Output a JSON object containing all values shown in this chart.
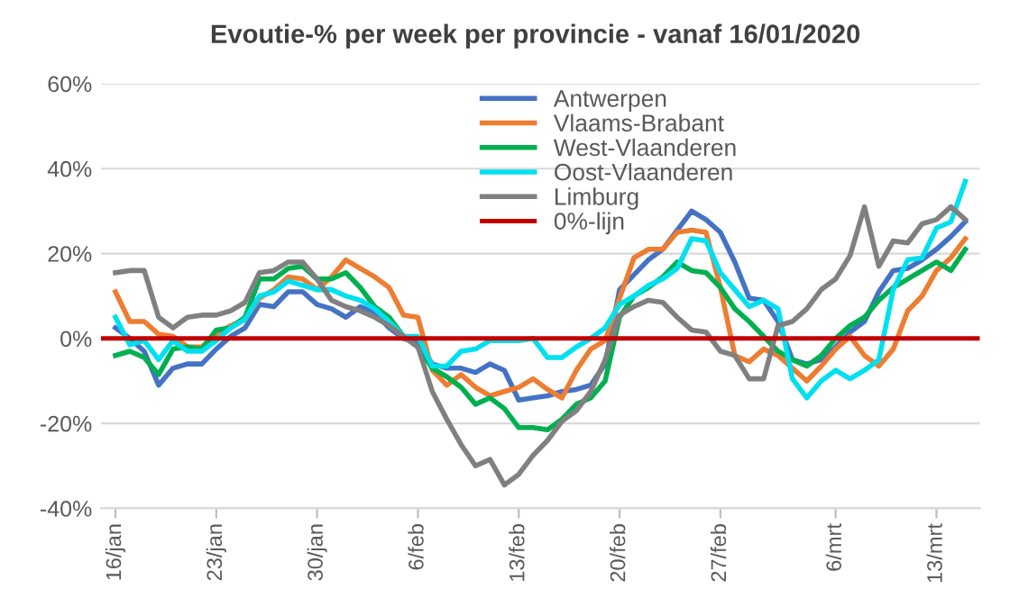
{
  "chart_data": {
    "type": "line",
    "title": "Evoutie-% per week per provincie - vanaf 16/01/2020",
    "x": [
      "2020-01-16",
      "2020-01-17",
      "2020-01-18",
      "2020-01-19",
      "2020-01-20",
      "2020-01-21",
      "2020-01-22",
      "2020-01-23",
      "2020-01-24",
      "2020-01-25",
      "2020-01-26",
      "2020-01-27",
      "2020-01-28",
      "2020-01-29",
      "2020-01-30",
      "2020-01-31",
      "2020-02-01",
      "2020-02-02",
      "2020-02-03",
      "2020-02-04",
      "2020-02-05",
      "2020-02-06",
      "2020-02-07",
      "2020-02-08",
      "2020-02-09",
      "2020-02-10",
      "2020-02-11",
      "2020-02-12",
      "2020-02-13",
      "2020-02-14",
      "2020-02-15",
      "2020-02-16",
      "2020-02-17",
      "2020-02-18",
      "2020-02-19",
      "2020-02-20",
      "2020-02-21",
      "2020-02-22",
      "2020-02-23",
      "2020-02-24",
      "2020-02-25",
      "2020-02-26",
      "2020-02-27",
      "2020-02-28",
      "2020-02-29",
      "2020-03-01",
      "2020-03-02",
      "2020-03-03",
      "2020-03-04",
      "2020-03-05",
      "2020-03-06",
      "2020-03-07",
      "2020-03-08",
      "2020-03-09",
      "2020-03-10",
      "2020-03-11",
      "2020-03-12",
      "2020-03-13",
      "2020-03-14",
      "2020-03-15"
    ],
    "series": [
      {
        "name": "Antwerpen",
        "color": "#4472c4",
        "values": [
          2.5,
          0,
          -3,
          -11,
          -7,
          -6,
          -6,
          -2.5,
          0.5,
          2.5,
          8,
          7.5,
          11,
          11,
          8,
          7,
          5,
          7.5,
          6,
          2.5,
          0,
          -1,
          -6,
          -7,
          -7,
          -8,
          -6,
          -7.5,
          -14.5,
          -14,
          -13.5,
          -12.5,
          -12,
          -11,
          -6,
          11.5,
          15,
          18.5,
          21,
          25.5,
          30,
          28,
          25,
          18,
          9.5,
          9,
          4,
          -5,
          -6,
          -5,
          -2,
          1.5,
          4,
          11,
          16,
          16.5,
          18.5,
          21,
          24,
          27.5
        ]
      },
      {
        "name": "Vlaams-Brabant",
        "color": "#ed7d31",
        "values": [
          11,
          4,
          4,
          1,
          0.5,
          -2,
          -2,
          1,
          3,
          4.5,
          9.5,
          11.5,
          14.5,
          14,
          11.5,
          14.5,
          18.5,
          16.5,
          14.5,
          12,
          5.5,
          5,
          -7.5,
          -11,
          -8.5,
          -11.5,
          -13.5,
          -12.5,
          -11.5,
          -9.5,
          -12,
          -14,
          -7.5,
          -2.5,
          -0.5,
          9.5,
          19,
          21,
          21,
          25,
          25.5,
          25,
          12,
          -4,
          -5.5,
          -2.5,
          -4,
          -7,
          -10,
          -6.5,
          -2.5,
          0.5,
          -4,
          -6.5,
          -2.5,
          6.5,
          10,
          16,
          19,
          23.5
        ]
      },
      {
        "name": "West-Vlaanderen",
        "color": "#00b050",
        "values": [
          -4,
          -3,
          -4.5,
          -8.5,
          -2.5,
          -2,
          -2.5,
          2,
          2.5,
          5,
          14,
          14,
          16.5,
          17,
          14,
          14,
          15.5,
          12,
          7.5,
          5,
          0.5,
          -2,
          -7,
          -9,
          -11.5,
          -15.5,
          -14,
          -16.5,
          -21,
          -21,
          -21.5,
          -19,
          -15.5,
          -14,
          -10,
          5,
          10,
          12,
          14.5,
          18,
          16,
          15.5,
          12,
          7,
          4,
          0.5,
          -3,
          -5,
          -6.5,
          -4,
          0,
          3,
          5,
          9,
          12,
          14,
          16,
          18,
          16,
          21
        ]
      },
      {
        "name": "Oost-Vlaanderen",
        "color": "#00e0f0",
        "values": [
          5,
          -1.5,
          -0.5,
          -5,
          -0.5,
          -3,
          -3,
          -0.5,
          2.5,
          4.5,
          10,
          11,
          13.5,
          12.5,
          11.5,
          11.5,
          10,
          9,
          7,
          4,
          0.5,
          0.5,
          -6.5,
          -6.5,
          -3,
          -2.5,
          -0.5,
          -0.5,
          -0.5,
          0,
          -4.5,
          -4.5,
          -2,
          0,
          2.5,
          8,
          10,
          12.5,
          14,
          16.5,
          23.5,
          23,
          15.5,
          11.5,
          7.5,
          9,
          7,
          -9.5,
          -14,
          -10,
          -7.5,
          -9.5,
          -7.5,
          -5,
          11.5,
          18.5,
          19,
          26,
          27.5,
          37
        ]
      },
      {
        "name": "Limburg",
        "color": "#808080",
        "values": [
          15.5,
          16,
          16,
          5,
          2.5,
          5,
          5.5,
          5.5,
          6.5,
          8.5,
          15.5,
          16,
          18,
          18,
          14,
          9,
          7.5,
          6.5,
          5,
          3,
          0.5,
          -2,
          -12.5,
          -19,
          -25,
          -30,
          -28.5,
          -34.5,
          -32,
          -27.5,
          -24,
          -19.5,
          -17,
          -12.5,
          -5,
          5.5,
          7.5,
          9,
          8.5,
          5,
          2,
          1.5,
          -3,
          -4,
          -9.5,
          -9.5,
          3,
          4,
          7,
          11.5,
          14,
          19.5,
          31,
          17,
          23,
          22.5,
          27,
          28,
          31,
          28
        ]
      }
    ],
    "ref_lines": [
      {
        "axis": "y",
        "value": 0,
        "label": "0%-lijn",
        "color": "#c00000"
      }
    ],
    "xlim": [
      "2020-01-15",
      "2020-03-16"
    ],
    "xticks": [
      {
        "value": "2020-01-16",
        "label": "16/jan"
      },
      {
        "value": "2020-01-23",
        "label": "23/jan"
      },
      {
        "value": "2020-01-30",
        "label": "30/jan"
      },
      {
        "value": "2020-02-06",
        "label": "6/feb"
      },
      {
        "value": "2020-02-13",
        "label": "13/feb"
      },
      {
        "value": "2020-02-20",
        "label": "20/feb"
      },
      {
        "value": "2020-02-27",
        "label": "27/feb"
      },
      {
        "value": "2020-03-06",
        "label": "6/mrt"
      },
      {
        "value": "2020-03-13",
        "label": "13/mrt"
      }
    ],
    "ylim": [
      -40,
      60
    ],
    "yticks": [
      {
        "value": -40,
        "label": "-40%"
      },
      {
        "value": -20,
        "label": "-20%"
      },
      {
        "value": 0,
        "label": "0%"
      },
      {
        "value": 20,
        "label": "20%"
      },
      {
        "value": 40,
        "label": "40%"
      },
      {
        "value": 60,
        "label": "60%"
      }
    ],
    "grid": "y",
    "legend": "top right",
    "marker": "none",
    "line_style": "solid"
  }
}
